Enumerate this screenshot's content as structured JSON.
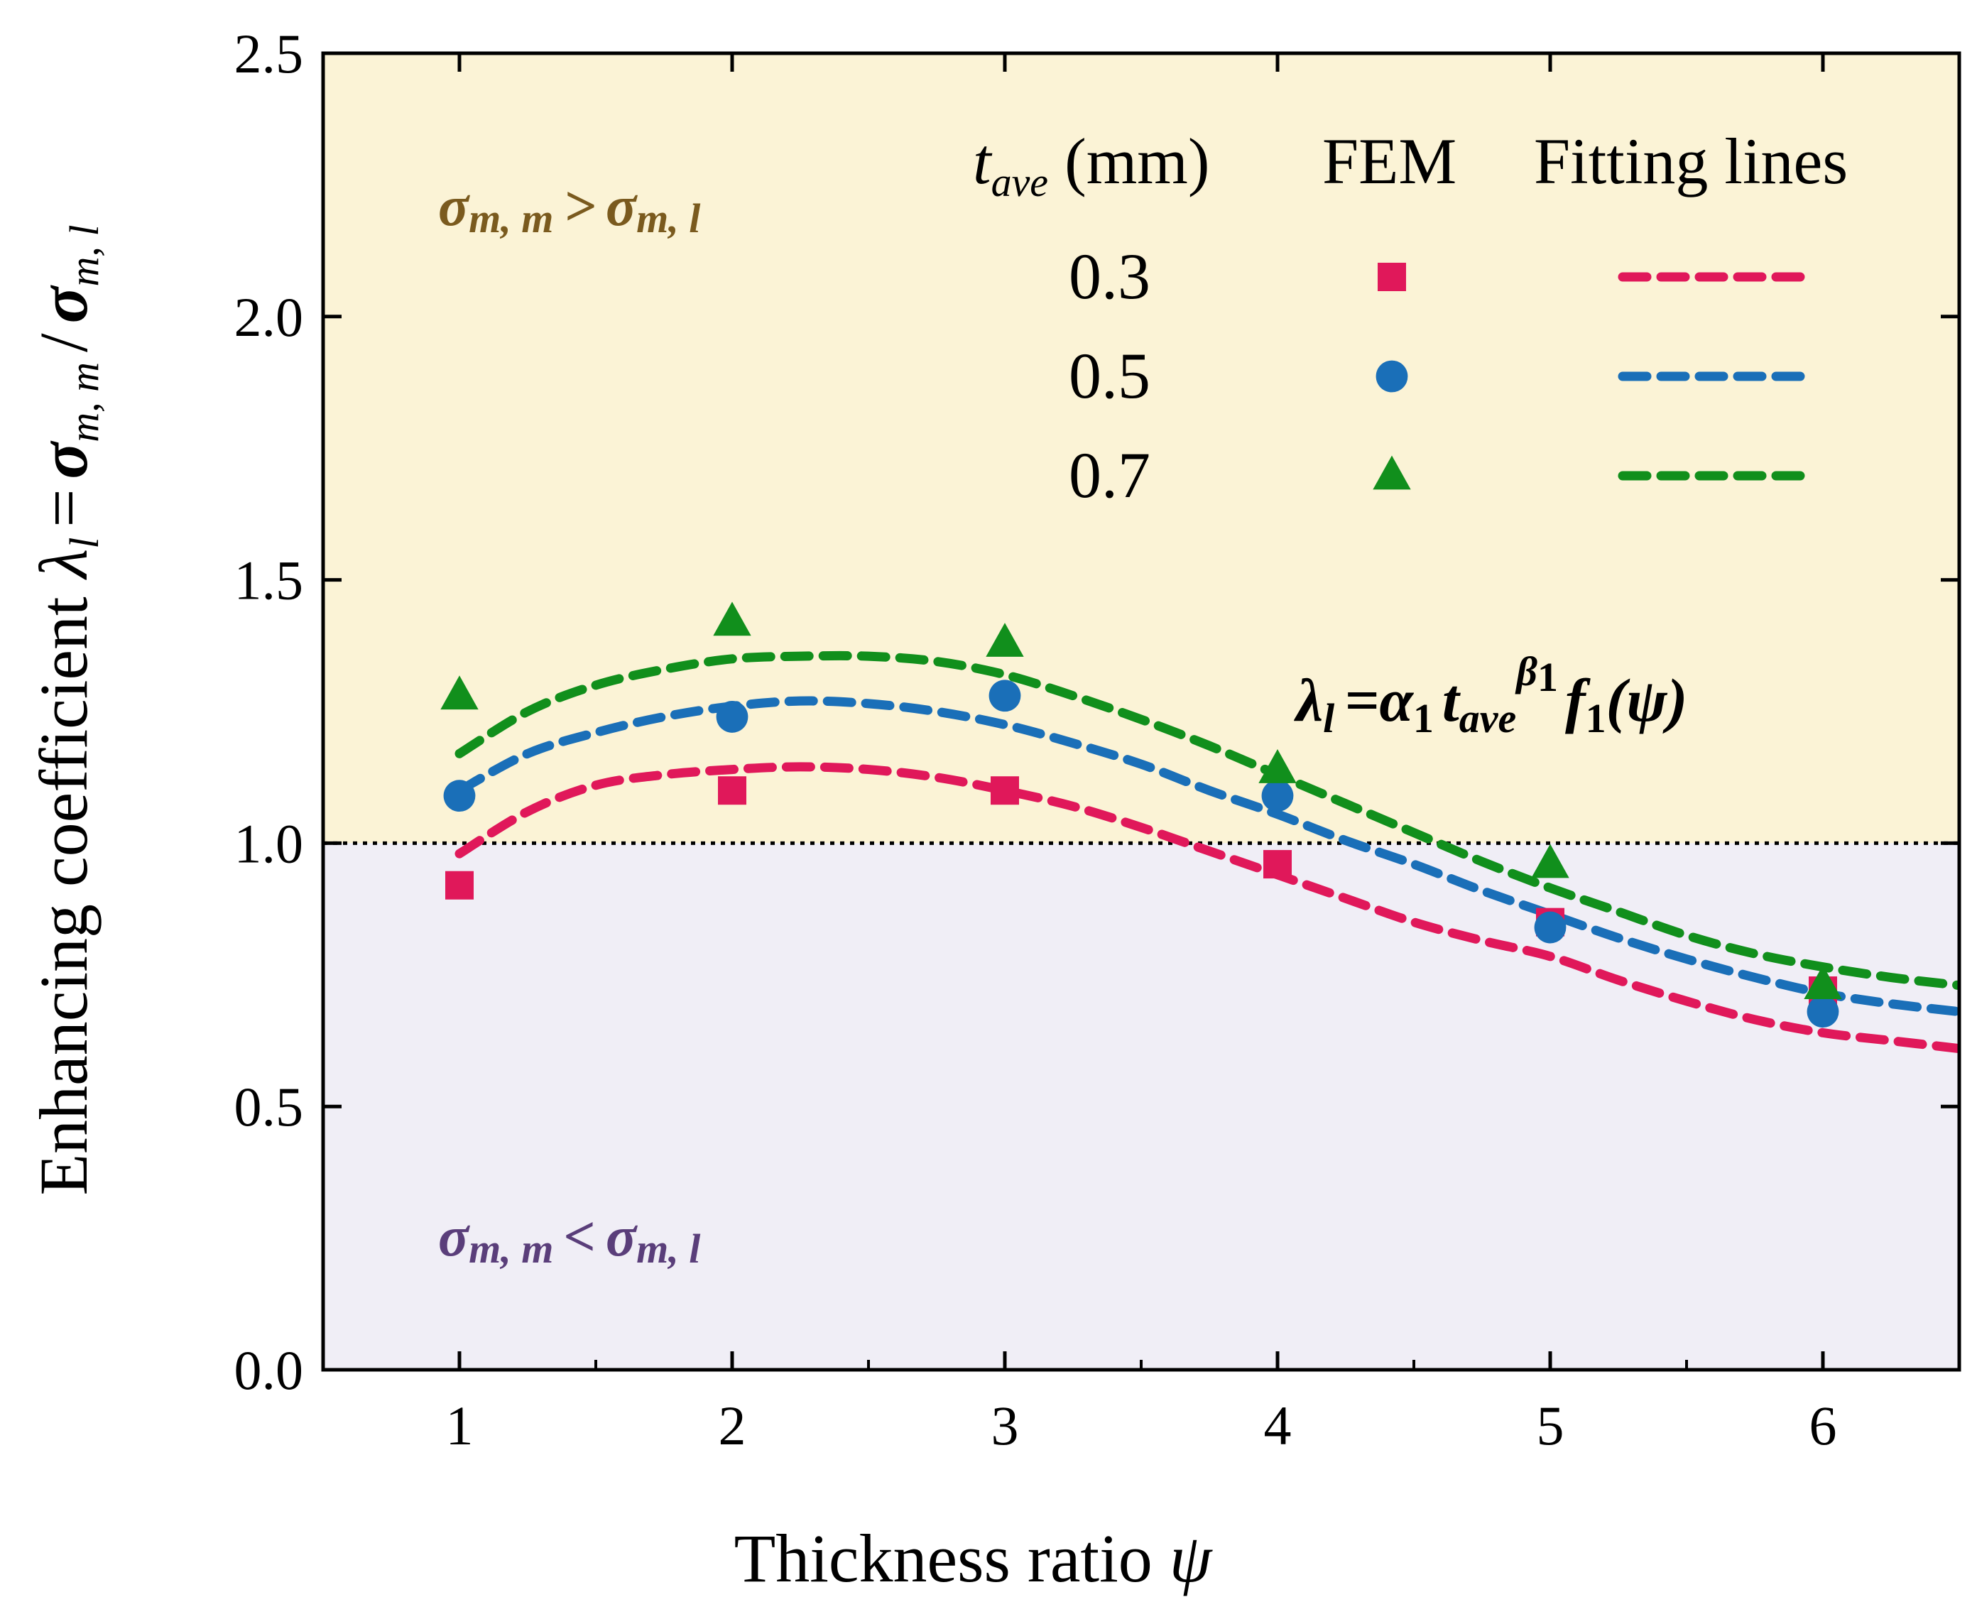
{
  "chart_data": {
    "type": "scatter",
    "x_label": "Thickness ratio",
    "x_label_symbol": "ψ",
    "y_label_prefix": "Enhancing coefficient",
    "y_label_lambda": "λ",
    "y_label_lambda_sub": "l",
    "y_label_eq": "=",
    "y_label_sigma": "σ",
    "y_label_sub_mm": "m, m",
    "y_label_slash": "/",
    "y_label_sub_ml": "m, l",
    "xlim": [
      0.5,
      6.5
    ],
    "ylim": [
      0.0,
      2.5
    ],
    "x_ticks": [
      "1",
      "2",
      "3",
      "4",
      "5",
      "6"
    ],
    "y_ticks": [
      "0.0",
      "0.5",
      "1.0",
      "1.5",
      "2.0",
      "2.5"
    ],
    "x_tick_values": [
      1,
      2,
      3,
      4,
      5,
      6
    ],
    "y_tick_values": [
      0.0,
      0.5,
      1.0,
      1.5,
      2.0,
      2.5
    ],
    "reference_line_y": 1.0,
    "regions": {
      "upper": {
        "color": "#fbf3d6",
        "sigma": "σ",
        "sub_left": "m, m",
        "op": ">",
        "sub_right": "m, l",
        "text_color": "#7a5a1e"
      },
      "lower": {
        "color": "#f0eef6",
        "sigma": "σ",
        "sub_left": "m, m",
        "op": "<",
        "sub_right": "m, l",
        "text_color": "#5a3e7a"
      }
    },
    "equation": {
      "lambda": "λ",
      "lambda_sub": "l",
      "eq": "=",
      "alpha": "α",
      "alpha_sub": "1",
      "t": "t",
      "t_sub": "ave",
      "beta": "β",
      "beta_sub": "1",
      "f": "f",
      "f_sub": "1",
      "arg": "(ψ)"
    },
    "legend": {
      "header_t": "t",
      "header_t_sub": "ave",
      "header_unit": " (mm)",
      "header_fem": "FEM",
      "header_fit": "Fitting lines"
    },
    "series": [
      {
        "name": "0.3",
        "marker": "square",
        "color": "#e0185a",
        "x": [
          1,
          2,
          3,
          4,
          5,
          6
        ],
        "fem": [
          0.92,
          1.1,
          1.1,
          0.96,
          0.85,
          0.72
        ],
        "fit_x": [
          1.0,
          1.25,
          1.5,
          1.75,
          2.0,
          2.25,
          2.5,
          2.75,
          3.0,
          3.25,
          3.5,
          3.75,
          4.0,
          4.25,
          4.5,
          4.75,
          5.0,
          5.25,
          5.5,
          5.75,
          6.0,
          6.25,
          6.5
        ],
        "fit_y": [
          0.98,
          1.06,
          1.11,
          1.13,
          1.14,
          1.145,
          1.14,
          1.125,
          1.1,
          1.07,
          1.03,
          0.985,
          0.94,
          0.895,
          0.85,
          0.815,
          0.785,
          0.74,
          0.7,
          0.665,
          0.64,
          0.625,
          0.61
        ]
      },
      {
        "name": "0.5",
        "marker": "circle",
        "color": "#1a6fb8",
        "x": [
          1,
          2,
          3,
          4,
          5,
          6
        ],
        "fem": [
          1.09,
          1.24,
          1.28,
          1.09,
          0.84,
          0.68
        ],
        "fit_x": [
          1.0,
          1.25,
          1.5,
          1.75,
          2.0,
          2.25,
          2.5,
          2.75,
          3.0,
          3.25,
          3.5,
          3.75,
          4.0,
          4.25,
          4.5,
          4.75,
          5.0,
          5.25,
          5.5,
          5.75,
          6.0,
          6.25,
          6.5
        ],
        "fit_y": [
          1.1,
          1.17,
          1.21,
          1.24,
          1.26,
          1.27,
          1.265,
          1.25,
          1.225,
          1.19,
          1.15,
          1.1,
          1.055,
          1.005,
          0.96,
          0.91,
          0.865,
          0.82,
          0.78,
          0.745,
          0.715,
          0.695,
          0.68
        ]
      },
      {
        "name": "0.7",
        "marker": "triangle",
        "color": "#118f1c",
        "x": [
          1,
          2,
          3,
          4,
          5,
          6
        ],
        "fem": [
          1.28,
          1.42,
          1.38,
          1.14,
          0.96,
          0.73
        ],
        "fit_x": [
          1.0,
          1.25,
          1.5,
          1.75,
          2.0,
          2.25,
          2.5,
          2.75,
          3.0,
          3.25,
          3.5,
          3.75,
          4.0,
          4.25,
          4.5,
          4.75,
          5.0,
          5.25,
          5.5,
          5.75,
          6.0,
          6.25,
          6.5
        ],
        "fit_y": [
          1.17,
          1.25,
          1.3,
          1.33,
          1.35,
          1.355,
          1.355,
          1.345,
          1.32,
          1.28,
          1.235,
          1.185,
          1.13,
          1.075,
          1.02,
          0.965,
          0.915,
          0.87,
          0.825,
          0.79,
          0.765,
          0.745,
          0.73
        ]
      }
    ]
  }
}
